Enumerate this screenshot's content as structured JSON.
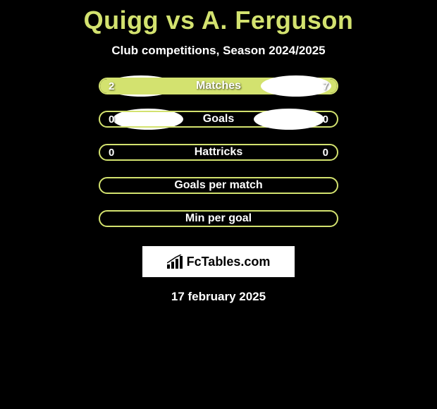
{
  "title": "Quigg vs A. Ferguson",
  "subtitle": "Club competitions, Season 2024/2025",
  "rows": [
    {
      "label": "Matches",
      "left_value": "2",
      "right_value": "7",
      "left_fill_pct": 22,
      "right_fill_pct": 78,
      "show_left_oval": true,
      "show_right_oval": true,
      "oval_class": ""
    },
    {
      "label": "Goals",
      "left_value": "0",
      "right_value": "0",
      "left_fill_pct": 0,
      "right_fill_pct": 0,
      "show_left_oval": true,
      "show_right_oval": true,
      "oval_class": "row2"
    },
    {
      "label": "Hattricks",
      "left_value": "0",
      "right_value": "0",
      "left_fill_pct": 0,
      "right_fill_pct": 0,
      "show_left_oval": false,
      "show_right_oval": false
    },
    {
      "label": "Goals per match",
      "left_value": "",
      "right_value": "",
      "left_fill_pct": 0,
      "right_fill_pct": 0,
      "show_left_oval": false,
      "show_right_oval": false
    },
    {
      "label": "Min per goal",
      "left_value": "",
      "right_value": "",
      "left_fill_pct": 0,
      "right_fill_pct": 0,
      "show_left_oval": false,
      "show_right_oval": false
    }
  ],
  "logo_text": "FcTables.com",
  "footer_date": "17 february 2025",
  "colors": {
    "background": "#000000",
    "accent": "#d3e26f",
    "text_primary": "#ffffff",
    "oval": "#ffffff"
  }
}
